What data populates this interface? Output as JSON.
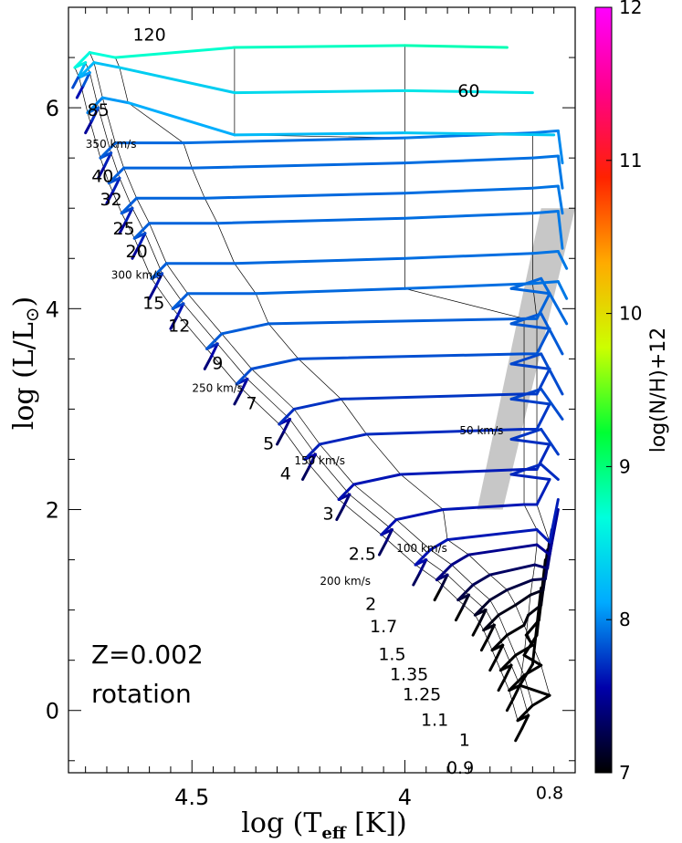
{
  "chart_data": {
    "type": "line",
    "title": "",
    "xlabel": "log (T_eff [K])",
    "ylabel": "log (L/L⊙)",
    "xlim": [
      4.79,
      3.6
    ],
    "ylim": [
      -0.62,
      7.0
    ],
    "x_reversed": true,
    "xticks": [
      {
        "v": 4.5,
        "label": "4.5"
      },
      {
        "v": 4.0,
        "label": "4"
      }
    ],
    "yticks": [
      {
        "v": 0,
        "label": "0"
      },
      {
        "v": 2,
        "label": "2"
      },
      {
        "v": 4,
        "label": "4"
      },
      {
        "v": 6,
        "label": "6"
      }
    ],
    "colorbar": {
      "label": "log(N/H)+12",
      "range": [
        7,
        12
      ],
      "ticks": [
        "7",
        "8",
        "9",
        "10",
        "11",
        "12"
      ],
      "colors": [
        "#000000",
        "#0000aa",
        "#00aaff",
        "#00ffdd",
        "#00ff33",
        "#ccff00",
        "#ffaa00",
        "#ff2200",
        "#ff0088",
        "#ff00ff"
      ]
    },
    "annotation": {
      "metallicity": "Z=0.002",
      "mode": "rotation"
    },
    "mass_labels": [
      {
        "text": "120",
        "x": 4.6,
        "y": 6.67
      },
      {
        "text": "85",
        "x": 4.72,
        "y": 5.92
      },
      {
        "text": "60",
        "x": 3.85,
        "y": 6.11
      },
      {
        "text": "40",
        "x": 4.71,
        "y": 5.26
      },
      {
        "text": "32",
        "x": 4.69,
        "y": 5.03
      },
      {
        "text": "25",
        "x": 4.66,
        "y": 4.74
      },
      {
        "text": "20",
        "x": 4.63,
        "y": 4.51
      },
      {
        "text": "15",
        "x": 4.59,
        "y": 4.0
      },
      {
        "text": "12",
        "x": 4.53,
        "y": 3.77
      },
      {
        "text": "9",
        "x": 4.44,
        "y": 3.4
      },
      {
        "text": "7",
        "x": 4.36,
        "y": 3.0
      },
      {
        "text": "5",
        "x": 4.32,
        "y": 2.6
      },
      {
        "text": "4",
        "x": 4.28,
        "y": 2.3
      },
      {
        "text": "3",
        "x": 4.18,
        "y": 1.9
      },
      {
        "text": "2.5",
        "x": 4.1,
        "y": 1.5
      },
      {
        "text": "2",
        "x": 4.08,
        "y": 1.0
      },
      {
        "text": "1.7",
        "x": 4.05,
        "y": 0.78
      },
      {
        "text": "1.5",
        "x": 4.03,
        "y": 0.5
      },
      {
        "text": "1.35",
        "x": 3.99,
        "y": 0.3
      },
      {
        "text": "1.25",
        "x": 3.96,
        "y": 0.1
      },
      {
        "text": "1.1",
        "x": 3.93,
        "y": -0.15
      },
      {
        "text": "1",
        "x": 3.86,
        "y": -0.35
      },
      {
        "text": "0.9",
        "x": 3.87,
        "y": -0.63
      },
      {
        "text": "0.8",
        "x": 3.66,
        "y": -0.88
      }
    ],
    "velocity_labels": [
      {
        "text": "350 km/s",
        "x": 4.69,
        "y": 5.6
      },
      {
        "text": "300 km/s",
        "x": 4.63,
        "y": 4.3
      },
      {
        "text": "250 km/s",
        "x": 4.44,
        "y": 3.17
      },
      {
        "text": "200 km/s",
        "x": 4.14,
        "y": 1.25
      },
      {
        "text": "150 km/s",
        "x": 4.2,
        "y": 2.45
      },
      {
        "text": "100 km/s",
        "x": 3.96,
        "y": 1.58
      },
      {
        "text": "50 km/s",
        "x": 3.82,
        "y": 2.75
      }
    ],
    "instability_strip": {
      "top": [
        [
          3.68,
          5.0
        ],
        [
          3.6,
          5.0
        ]
      ],
      "bottom": [
        [
          3.83,
          2.0
        ],
        [
          3.77,
          2.0
        ]
      ]
    },
    "tracks": [
      {
        "mass": "0.8",
        "zams": [
          3.74,
          -0.3
        ],
        "tip": [
          3.68,
          1.22
        ],
        "c": [
          7.0,
          7.0,
          7.0
        ]
      },
      {
        "mass": "0.9",
        "zams": [
          3.76,
          0.0
        ],
        "tip": [
          3.67,
          1.5
        ],
        "c": [
          7.0,
          7.0,
          7.0
        ]
      },
      {
        "mass": "1",
        "zams": [
          3.78,
          0.2
        ],
        "tip": [
          3.665,
          1.6
        ],
        "c": [
          7.0,
          7.0,
          7.0
        ]
      },
      {
        "mass": "1.1",
        "zams": [
          3.8,
          0.4
        ],
        "tip": [
          3.66,
          1.7
        ],
        "c": [
          7.0,
          7.0,
          7.05
        ]
      },
      {
        "mass": "1.25",
        "zams": [
          3.82,
          0.6
        ],
        "tip": [
          3.655,
          1.8
        ],
        "c": [
          7.0,
          7.05,
          7.1
        ]
      },
      {
        "mass": "1.35",
        "zams": [
          3.84,
          0.75
        ],
        "tip": [
          3.65,
          1.87
        ],
        "c": [
          7.0,
          7.1,
          7.3
        ]
      },
      {
        "mass": "1.5",
        "zams": [
          3.88,
          0.9
        ],
        "tip": [
          3.645,
          1.93
        ],
        "c": [
          7.0,
          7.2,
          7.4
        ]
      },
      {
        "mass": "1.7",
        "zams": [
          3.93,
          1.1
        ],
        "tip": [
          3.64,
          2.0
        ],
        "c": [
          7.0,
          7.4,
          7.5
        ]
      },
      {
        "mass": "2",
        "zams": [
          3.98,
          1.25
        ],
        "tip": [
          3.64,
          2.1
        ],
        "c": [
          7.3,
          7.6,
          7.65
        ]
      },
      {
        "mass": "2.5",
        "zams": [
          4.06,
          1.55
        ],
        "tip": [
          3.64,
          2.3
        ],
        "c": [
          7.3,
          7.6,
          7.7
        ]
      },
      {
        "mass": "3",
        "zams": [
          4.16,
          1.9
        ],
        "tip": [
          3.64,
          2.55
        ],
        "c": [
          7.3,
          7.6,
          7.75
        ]
      },
      {
        "mass": "4",
        "zams": [
          4.24,
          2.3
        ],
        "tip": [
          3.63,
          2.9
        ],
        "c": [
          7.3,
          7.65,
          7.8
        ]
      },
      {
        "mass": "5",
        "zams": [
          4.3,
          2.65
        ],
        "tip": [
          3.63,
          3.15
        ],
        "c": [
          7.3,
          7.7,
          7.8
        ]
      },
      {
        "mass": "7",
        "zams": [
          4.4,
          3.05
        ],
        "tip": [
          3.63,
          3.55
        ],
        "c": [
          7.35,
          7.8,
          7.85
        ]
      },
      {
        "mass": "9",
        "zams": [
          4.47,
          3.4
        ],
        "tip": [
          3.62,
          3.85
        ],
        "c": [
          7.4,
          7.85,
          7.9
        ]
      },
      {
        "mass": "12",
        "zams": [
          4.55,
          3.8
        ],
        "tip": [
          3.62,
          4.1
        ],
        "c": [
          7.45,
          7.85,
          7.95
        ]
      },
      {
        "mass": "15",
        "zams": [
          4.6,
          4.1
        ],
        "tip": [
          3.62,
          4.4
        ],
        "c": [
          7.45,
          7.85,
          7.95
        ]
      },
      {
        "mass": "20",
        "zams": [
          4.64,
          4.5
        ],
        "tip": [
          3.63,
          4.6
        ],
        "c": [
          7.5,
          7.85,
          7.95
        ]
      },
      {
        "mass": "25",
        "zams": [
          4.67,
          4.75
        ],
        "tip": [
          3.63,
          4.95
        ],
        "c": [
          7.5,
          7.85,
          7.95
        ]
      },
      {
        "mass": "32",
        "zams": [
          4.7,
          5.05
        ],
        "tip": [
          3.63,
          5.2
        ],
        "c": [
          7.5,
          7.85,
          7.95
        ]
      },
      {
        "mass": "40",
        "zams": [
          4.72,
          5.3
        ],
        "tip": [
          3.63,
          5.45
        ],
        "c": [
          7.5,
          7.85,
          8.0
        ]
      },
      {
        "mass": "60",
        "zams": [
          4.75,
          5.75
        ],
        "tip": [
          3.65,
          5.73
        ],
        "c": [
          7.5,
          7.9,
          8.3
        ]
      },
      {
        "mass": "85",
        "zams": [
          4.77,
          6.1
        ],
        "tip": [
          3.7,
          6.15
        ],
        "c": [
          7.6,
          8.1,
          8.5
        ]
      },
      {
        "mass": "120",
        "zams": [
          4.78,
          6.2
        ],
        "tip": [
          3.76,
          6.6
        ],
        "c": [
          7.8,
          8.6,
          8.8
        ]
      }
    ]
  }
}
